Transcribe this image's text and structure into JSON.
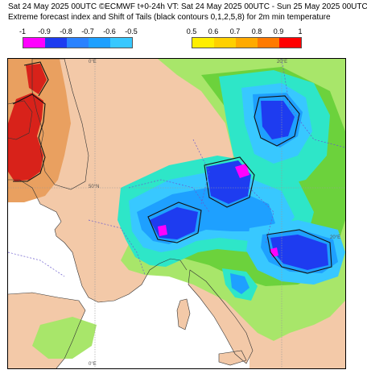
{
  "header": {
    "line1": "Sat 24 May 2025 00UTC ©ECMWF t+0-24h  VT: Sat 24 May 2025 00UTC - Sun 25 May 2025 00UTC",
    "line2": "Extreme forecast index and Shift of Tails (black contours 0,1,2,5,8) for 2m min temperature"
  },
  "legend_negative": {
    "ticks": [
      "-1",
      "-0.9",
      "-0.8",
      "-0.7",
      "-0.6",
      "-0.5"
    ],
    "colors": [
      "#ff00ff",
      "#1e3cf0",
      "#2a82ff",
      "#1ea0ff",
      "#38c8ff",
      "#2ee6c8"
    ]
  },
  "legend_positive": {
    "ticks": [
      "0.5",
      "0.6",
      "0.7",
      "0.8",
      "0.9",
      "1"
    ],
    "colors": [
      "#ffee00",
      "#ffd000",
      "#ffaa00",
      "#ff7a00",
      "#ff0000"
    ]
  },
  "map_labels": {
    "lon_0": "0°E",
    "lon_20": "20°E",
    "lat_50": "50°N",
    "lat_20_right": "20°E",
    "bottom_0": "0°E"
  },
  "colors": {
    "sea": "#ffffff",
    "land": "#f3c9a8",
    "green_light": "#a8e66a",
    "green": "#6cd23c",
    "cyan": "#2ee6c8",
    "lightblue": "#38c8ff",
    "blue": "#1ea0ff",
    "darkblue": "#1e3cf0",
    "magenta": "#ff00ff",
    "orange": "#e9a060",
    "red": "#d8221a"
  }
}
